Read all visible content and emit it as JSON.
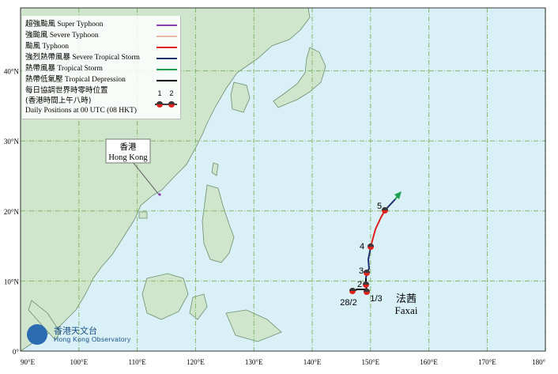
{
  "map": {
    "lon_labels": [
      "90°E",
      "100°E",
      "110°E",
      "120°E",
      "130°E",
      "140°E",
      "150°E",
      "160°E",
      "170°E",
      "180°"
    ],
    "lat_labels": [
      "0°",
      "10°N",
      "20°N",
      "30°N",
      "40°N"
    ],
    "colors": {
      "sea": "#d8f0f6",
      "land": "#cfe6cc",
      "grid": "#86b86c",
      "coast": "#6d8d6d"
    }
  },
  "legend": {
    "items": [
      {
        "zh": "超強颱風",
        "en": "Super Typhoon",
        "color": "#8a3fb0"
      },
      {
        "zh": "強颱風",
        "en": "Severe Typhoon",
        "color": "#e8b8a8"
      },
      {
        "zh": "颱風",
        "en": "Typhoon",
        "color": "#e0201a"
      },
      {
        "zh": "強烈熱帶風暴",
        "en": "Severe Tropical Storm",
        "color": "#1c2f6e"
      },
      {
        "zh": "熱帶風暴",
        "en": "Tropical Storm",
        "color": "#1fa050"
      },
      {
        "zh": "熱帶低氣壓",
        "en": "Tropical Depression",
        "color": "#000000"
      }
    ],
    "daily_zh_1": "每日協調世界時零時位置",
    "daily_zh_2": "(香港時間上午八時)",
    "daily_en": "Daily Positions at 00 UTC (08 HKT)",
    "marker_labels": [
      "1",
      "2"
    ]
  },
  "hong_kong": {
    "zh": "香港",
    "en": "Hong Kong"
  },
  "storm": {
    "name_zh": "法茜",
    "name_en": "Faxai"
  },
  "positions": [
    {
      "label": "28/2"
    },
    {
      "label": "1/3"
    },
    {
      "label": "2"
    },
    {
      "label": "3"
    },
    {
      "label": "4"
    },
    {
      "label": "5"
    }
  ],
  "logo": {
    "zh": "香港天文台",
    "en": "Hong Kong Observatory"
  }
}
